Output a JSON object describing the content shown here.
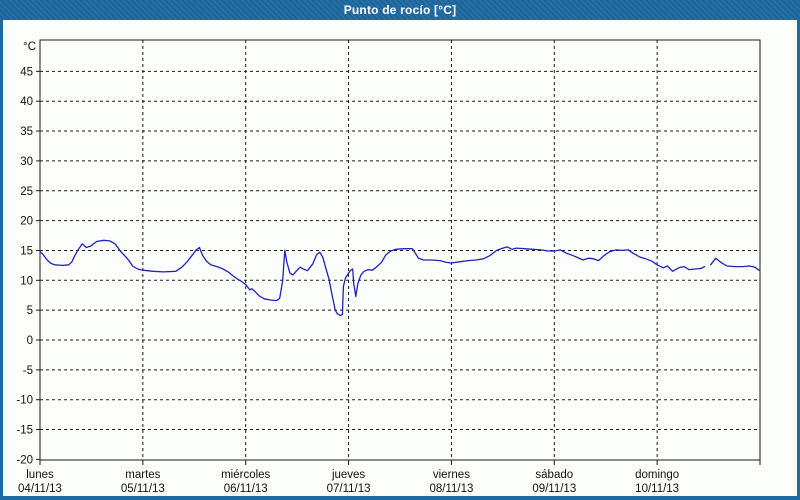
{
  "window": {
    "title": "Punto de rocío [°C]",
    "titlebar_color": "#1e6aa3",
    "content_bg": "#fcfefc"
  },
  "chart_data": {
    "type": "line",
    "title": "Punto de rocío [°C]",
    "y_unit_label": "°C",
    "ylim": [
      -20,
      50
    ],
    "ytick_step": 5,
    "ytick_labels": [
      45,
      40,
      35,
      30,
      25,
      20,
      15,
      10,
      5,
      0,
      -5,
      -10,
      -15,
      -20
    ],
    "grid": {
      "horizontal": "dashed",
      "vertical": "dashed-at-day-boundaries",
      "color": "#1a1a1a"
    },
    "axis_color": "#1a1a1a",
    "x_days": [
      {
        "name": "lunes",
        "date": "04/11/13"
      },
      {
        "name": "martes",
        "date": "05/11/13"
      },
      {
        "name": "miércoles",
        "date": "06/11/13"
      },
      {
        "name": "jueves",
        "date": "07/11/13"
      },
      {
        "name": "viernes",
        "date": "08/11/13"
      },
      {
        "name": "sábado",
        "date": "09/11/13"
      },
      {
        "name": "domingo",
        "date": "10/11/13"
      }
    ],
    "series": [
      {
        "name": "Punto de rocío",
        "color": "#2121bd",
        "x_unit": "days_from_start",
        "y_unit": "°C",
        "points": [
          [
            0.0,
            14.8
          ],
          [
            0.03,
            14.3
          ],
          [
            0.07,
            13.4
          ],
          [
            0.1,
            12.9
          ],
          [
            0.14,
            12.6
          ],
          [
            0.22,
            12.5
          ],
          [
            0.28,
            12.6
          ],
          [
            0.31,
            13.1
          ],
          [
            0.34,
            14.2
          ],
          [
            0.37,
            15.1
          ],
          [
            0.41,
            16.1
          ],
          [
            0.45,
            15.5
          ],
          [
            0.49,
            15.7
          ],
          [
            0.55,
            16.5
          ],
          [
            0.62,
            16.7
          ],
          [
            0.68,
            16.6
          ],
          [
            0.73,
            16.1
          ],
          [
            0.76,
            15.4
          ],
          [
            0.79,
            14.7
          ],
          [
            0.83,
            14.0
          ],
          [
            0.86,
            13.4
          ],
          [
            0.9,
            12.4
          ],
          [
            0.95,
            11.9
          ],
          [
            1.0,
            11.7
          ],
          [
            1.1,
            11.5
          ],
          [
            1.2,
            11.4
          ],
          [
            1.32,
            11.5
          ],
          [
            1.38,
            12.2
          ],
          [
            1.43,
            13.1
          ],
          [
            1.48,
            14.2
          ],
          [
            1.52,
            15.1
          ],
          [
            1.55,
            15.5
          ],
          [
            1.58,
            14.2
          ],
          [
            1.62,
            13.2
          ],
          [
            1.66,
            12.6
          ],
          [
            1.72,
            12.3
          ],
          [
            1.78,
            11.9
          ],
          [
            1.83,
            11.4
          ],
          [
            1.88,
            10.7
          ],
          [
            1.92,
            10.2
          ],
          [
            1.96,
            9.8
          ],
          [
            2.0,
            9.3
          ],
          [
            2.04,
            8.4
          ],
          [
            2.06,
            8.6
          ],
          [
            2.09,
            8.1
          ],
          [
            2.13,
            7.4
          ],
          [
            2.18,
            6.9
          ],
          [
            2.24,
            6.7
          ],
          [
            2.3,
            6.6
          ],
          [
            2.33,
            7.0
          ],
          [
            2.36,
            10.0
          ],
          [
            2.38,
            15.0
          ],
          [
            2.4,
            13.0
          ],
          [
            2.43,
            11.2
          ],
          [
            2.46,
            10.9
          ],
          [
            2.5,
            11.7
          ],
          [
            2.53,
            12.2
          ],
          [
            2.56,
            11.9
          ],
          [
            2.6,
            11.6
          ],
          [
            2.65,
            12.7
          ],
          [
            2.69,
            14.3
          ],
          [
            2.72,
            14.7
          ],
          [
            2.75,
            13.8
          ],
          [
            2.78,
            12.0
          ],
          [
            2.81,
            10.2
          ],
          [
            2.84,
            7.5
          ],
          [
            2.87,
            5.0
          ],
          [
            2.89,
            4.4
          ],
          [
            2.92,
            4.1
          ],
          [
            2.94,
            4.3
          ],
          [
            2.95,
            9.0
          ],
          [
            2.97,
            10.4
          ],
          [
            3.0,
            11.2
          ],
          [
            3.02,
            11.7
          ],
          [
            3.04,
            11.9
          ],
          [
            3.05,
            9.5
          ],
          [
            3.07,
            7.3
          ],
          [
            3.09,
            9.4
          ],
          [
            3.12,
            10.9
          ],
          [
            3.15,
            11.5
          ],
          [
            3.19,
            11.8
          ],
          [
            3.23,
            11.7
          ],
          [
            3.27,
            12.2
          ],
          [
            3.32,
            13.0
          ],
          [
            3.36,
            14.2
          ],
          [
            3.41,
            14.9
          ],
          [
            3.46,
            15.2
          ],
          [
            3.54,
            15.3
          ],
          [
            3.62,
            15.3
          ],
          [
            3.65,
            14.5
          ],
          [
            3.68,
            13.7
          ],
          [
            3.73,
            13.4
          ],
          [
            3.81,
            13.4
          ],
          [
            3.89,
            13.3
          ],
          [
            3.95,
            13.0
          ],
          [
            4.0,
            12.9
          ],
          [
            4.08,
            13.1
          ],
          [
            4.16,
            13.3
          ],
          [
            4.24,
            13.4
          ],
          [
            4.31,
            13.6
          ],
          [
            4.37,
            14.1
          ],
          [
            4.44,
            15.0
          ],
          [
            4.5,
            15.4
          ],
          [
            4.54,
            15.6
          ],
          [
            4.59,
            15.2
          ],
          [
            4.63,
            15.4
          ],
          [
            4.71,
            15.3
          ],
          [
            4.79,
            15.2
          ],
          [
            4.87,
            15.1
          ],
          [
            4.94,
            14.9
          ],
          [
            5.0,
            14.9
          ],
          [
            5.06,
            15.1
          ],
          [
            5.11,
            14.6
          ],
          [
            5.17,
            14.2
          ],
          [
            5.23,
            13.8
          ],
          [
            5.28,
            13.4
          ],
          [
            5.33,
            13.7
          ],
          [
            5.38,
            13.6
          ],
          [
            5.43,
            13.3
          ],
          [
            5.48,
            14.1
          ],
          [
            5.54,
            14.8
          ],
          [
            5.6,
            15.1
          ],
          [
            5.66,
            15.0
          ],
          [
            5.72,
            15.1
          ],
          [
            5.77,
            14.5
          ],
          [
            5.83,
            13.9
          ],
          [
            5.89,
            13.6
          ],
          [
            5.95,
            13.2
          ],
          [
            6.0,
            12.6
          ],
          [
            6.06,
            12.1
          ],
          [
            6.1,
            12.4
          ],
          [
            6.15,
            11.5
          ],
          [
            6.21,
            12.1
          ],
          [
            6.26,
            12.3
          ],
          [
            6.31,
            11.8
          ],
          [
            6.37,
            11.9
          ],
          [
            6.43,
            12.0
          ],
          [
            6.46,
            12.3
          ],
          [
            6.48,
            null
          ],
          [
            6.52,
            12.6
          ],
          [
            6.57,
            13.7
          ],
          [
            6.62,
            13.0
          ],
          [
            6.68,
            12.4
          ],
          [
            6.76,
            12.3
          ],
          [
            6.83,
            12.3
          ],
          [
            6.9,
            12.4
          ],
          [
            6.95,
            12.2
          ],
          [
            6.99,
            11.7
          ]
        ]
      }
    ]
  }
}
